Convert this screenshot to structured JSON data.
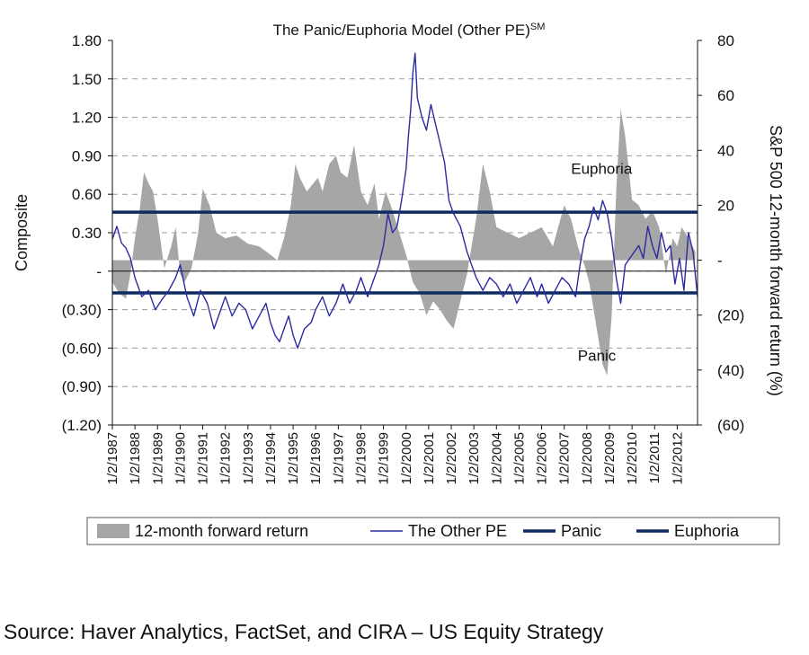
{
  "chart_data": {
    "type": "line",
    "title": "The Panic/Euphoria Model (Other PE)",
    "title_superscript": "SM",
    "ylabel": "Composite",
    "y2label": "S&P 500 12-month forward return (%)",
    "ylim": [
      -1.2,
      1.8
    ],
    "y2lim": [
      -60,
      80
    ],
    "yticks": [
      "1.80",
      "1.50",
      "1.20",
      "0.90",
      "0.60",
      "0.30",
      "-",
      "(0.30)",
      "(0.60)",
      "(0.90)",
      "(1.20)"
    ],
    "ytick_values": [
      1.8,
      1.5,
      1.2,
      0.9,
      0.6,
      0.3,
      0,
      -0.3,
      -0.6,
      -0.9,
      -1.2
    ],
    "y2ticks": [
      "80",
      "60",
      "40",
      "20",
      "-",
      "(20)",
      "(40)",
      "(60)"
    ],
    "y2tick_values": [
      80,
      60,
      40,
      20,
      0,
      -20,
      -40,
      -60
    ],
    "x": [
      "1/2/1987",
      "1/2/1988",
      "1/2/1989",
      "1/2/1990",
      "1/2/1991",
      "1/2/1992",
      "1/2/1993",
      "1/2/1994",
      "1/2/1995",
      "1/2/1996",
      "1/2/1997",
      "1/2/1998",
      "1/2/1999",
      "1/2/2000",
      "1/2/2001",
      "1/2/2002",
      "1/2/2003",
      "1/2/2004",
      "1/2/2005",
      "1/2/2006",
      "1/2/2007",
      "1/2/2008",
      "1/2/2009",
      "1/2/2010",
      "1/2/2011",
      "1/2/2012"
    ],
    "xlim": [
      1987.0,
      2012.9
    ],
    "grid": true,
    "legend_position": "bottom",
    "series": [
      {
        "name": "12-month forward return",
        "kind": "area",
        "axis": "right",
        "color": "#a6a6a6",
        "x": [
          1987.0,
          1987.3,
          1987.6,
          1987.8,
          1988.0,
          1988.2,
          1988.4,
          1988.6,
          1988.8,
          1989.0,
          1989.3,
          1989.6,
          1989.8,
          1990.0,
          1990.2,
          1990.5,
          1990.8,
          1991.0,
          1991.3,
          1991.6,
          1992.0,
          1992.5,
          1993.0,
          1993.5,
          1994.0,
          1994.3,
          1994.6,
          1994.9,
          1995.1,
          1995.3,
          1995.6,
          1995.9,
          1996.1,
          1996.3,
          1996.6,
          1996.9,
          1997.1,
          1997.4,
          1997.7,
          1998.0,
          1998.3,
          1998.6,
          1998.8,
          1999.1,
          1999.4,
          1999.7,
          2000.0,
          2000.3,
          2000.6,
          2000.9,
          2001.2,
          2001.5,
          2001.8,
          2002.1,
          2002.4,
          2002.7,
          2002.9,
          2003.1,
          2003.4,
          2003.7,
          2004.0,
          2004.5,
          2005.0,
          2005.5,
          2006.0,
          2006.5,
          2007.0,
          2007.3,
          2007.6,
          2007.9,
          2008.1,
          2008.3,
          2008.5,
          2008.7,
          2008.9,
          2009.1,
          2009.3,
          2009.5,
          2009.7,
          2010.0,
          2010.3,
          2010.6,
          2010.9,
          2011.2,
          2011.5,
          2011.8,
          2012.0,
          2012.2,
          2012.5,
          2012.8
        ],
        "values": [
          -8,
          -12,
          -14,
          -5,
          8,
          18,
          32,
          28,
          25,
          15,
          -3,
          5,
          12,
          -5,
          -8,
          -3,
          10,
          26,
          20,
          10,
          8,
          9,
          6,
          5,
          2,
          0,
          8,
          20,
          35,
          30,
          25,
          28,
          30,
          25,
          35,
          38,
          32,
          30,
          42,
          25,
          20,
          28,
          15,
          25,
          18,
          10,
          2,
          -8,
          -12,
          -20,
          -15,
          -18,
          -22,
          -25,
          -15,
          -5,
          5,
          15,
          35,
          25,
          12,
          10,
          8,
          10,
          12,
          5,
          20,
          15,
          5,
          -2,
          -8,
          -18,
          -28,
          -38,
          -42,
          -20,
          25,
          55,
          45,
          22,
          20,
          15,
          18,
          12,
          -5,
          8,
          5,
          12,
          8,
          3
        ]
      },
      {
        "name": "The Other PE",
        "kind": "line",
        "axis": "left",
        "color": "#2b2b9f",
        "x": [
          1987.0,
          1987.2,
          1987.4,
          1987.6,
          1987.8,
          1988.0,
          1988.3,
          1988.6,
          1988.9,
          1989.2,
          1989.5,
          1989.8,
          1990.0,
          1990.3,
          1990.6,
          1990.9,
          1991.2,
          1991.5,
          1991.8,
          1992.0,
          1992.3,
          1992.6,
          1992.9,
          1993.2,
          1993.5,
          1993.8,
          1994.0,
          1994.2,
          1994.4,
          1994.6,
          1994.8,
          1995.0,
          1995.2,
          1995.5,
          1995.8,
          1996.0,
          1996.3,
          1996.6,
          1996.9,
          1997.2,
          1997.5,
          1997.8,
          1998.0,
          1998.3,
          1998.6,
          1998.8,
          1999.0,
          1999.2,
          1999.4,
          1999.6,
          1999.8,
          2000.0,
          2000.1,
          2000.2,
          2000.3,
          2000.4,
          2000.5,
          2000.7,
          2000.9,
          2001.1,
          2001.3,
          2001.5,
          2001.7,
          2001.9,
          2002.1,
          2002.4,
          2002.7,
          2002.9,
          2003.1,
          2003.4,
          2003.7,
          2004.0,
          2004.3,
          2004.6,
          2004.9,
          2005.2,
          2005.5,
          2005.8,
          2006.0,
          2006.3,
          2006.6,
          2006.9,
          2007.2,
          2007.5,
          2007.7,
          2007.9,
          2008.1,
          2008.3,
          2008.5,
          2008.7,
          2008.9,
          2009.1,
          2009.3,
          2009.5,
          2009.7,
          2009.9,
          2010.1,
          2010.3,
          2010.5,
          2010.7,
          2010.9,
          2011.1,
          2011.3,
          2011.5,
          2011.7,
          2011.9,
          2012.1,
          2012.3,
          2012.5,
          2012.7,
          2012.9
        ],
        "values": [
          0.25,
          0.35,
          0.22,
          0.18,
          0.1,
          -0.05,
          -0.2,
          -0.15,
          -0.3,
          -0.22,
          -0.15,
          -0.05,
          0.05,
          -0.2,
          -0.35,
          -0.15,
          -0.25,
          -0.45,
          -0.3,
          -0.2,
          -0.35,
          -0.25,
          -0.3,
          -0.45,
          -0.35,
          -0.25,
          -0.4,
          -0.5,
          -0.55,
          -0.45,
          -0.35,
          -0.5,
          -0.6,
          -0.45,
          -0.4,
          -0.3,
          -0.2,
          -0.35,
          -0.25,
          -0.1,
          -0.25,
          -0.15,
          -0.05,
          -0.2,
          -0.05,
          0.05,
          0.2,
          0.45,
          0.3,
          0.35,
          0.55,
          0.8,
          1.05,
          1.25,
          1.55,
          1.7,
          1.35,
          1.2,
          1.1,
          1.3,
          1.15,
          1.0,
          0.85,
          0.55,
          0.45,
          0.35,
          0.15,
          0.05,
          -0.05,
          -0.15,
          -0.05,
          -0.1,
          -0.2,
          -0.1,
          -0.25,
          -0.15,
          -0.05,
          -0.2,
          -0.1,
          -0.25,
          -0.15,
          -0.05,
          -0.1,
          -0.2,
          0.05,
          0.25,
          0.35,
          0.5,
          0.4,
          0.55,
          0.45,
          0.25,
          -0.05,
          -0.25,
          0.05,
          0.1,
          0.15,
          0.2,
          0.1,
          0.35,
          0.2,
          0.1,
          0.3,
          0.15,
          0.2,
          -0.1,
          0.1,
          -0.15,
          0.3,
          0.15,
          -0.2
        ]
      },
      {
        "name": "Panic",
        "kind": "hline",
        "axis": "left",
        "color": "#0f2a5e",
        "value": -0.17
      },
      {
        "name": "Euphoria",
        "kind": "hline",
        "axis": "left",
        "color": "#0f2a5e",
        "value": 0.46
      }
    ],
    "annotations": [
      {
        "text": "Euphoria",
        "x": 2007.3,
        "y": 0.76
      },
      {
        "text": "Panic",
        "x": 2007.6,
        "y": -0.7
      }
    ]
  },
  "source": "Source: Haver Analytics, FactSet, and CIRA – US Equity Strategy"
}
